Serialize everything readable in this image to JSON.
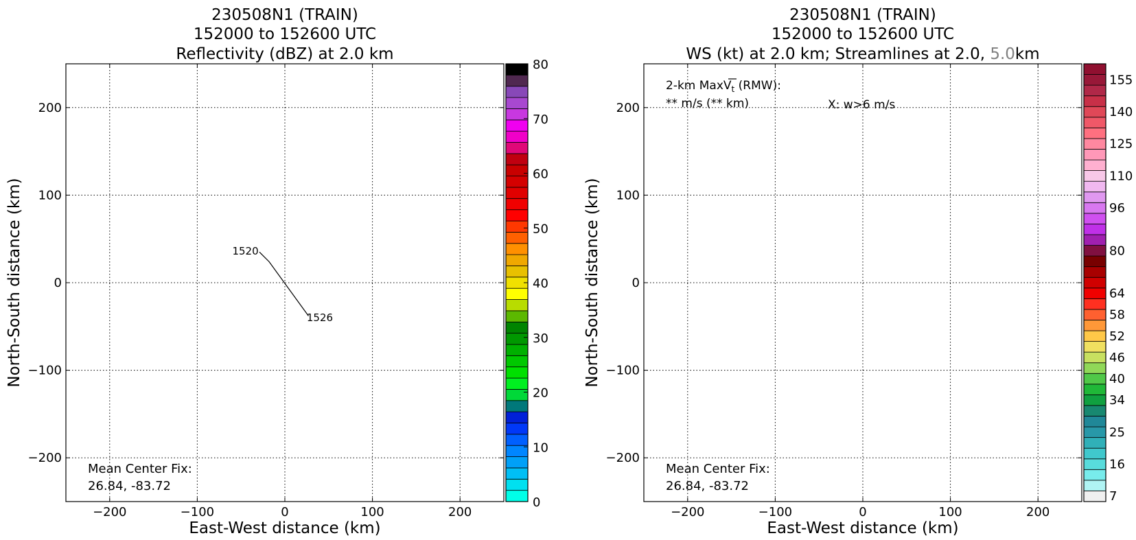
{
  "chart_data": [
    {
      "type": "line",
      "title_lines": [
        "230508N1 (TRAIN)",
        "152000 to 152600 UTC",
        "Reflectivity (dBZ) at 2.0 km"
      ],
      "xlabel": "East-West distance (km)",
      "ylabel": "North-South distance (km)",
      "xlim": [
        -250,
        250
      ],
      "ylim": [
        -250,
        250
      ],
      "xticks": [
        -200,
        -100,
        0,
        100,
        200
      ],
      "yticks": [
        -200,
        -100,
        0,
        100,
        200
      ],
      "xtick_labels": [
        "−200",
        "−100",
        "0",
        "100",
        "200"
      ],
      "ytick_labels": [
        "−200",
        "−100",
        "0",
        "100",
        "200"
      ],
      "grid": true,
      "series": [
        {
          "x": [
            -29,
            -18,
            27
          ],
          "y": [
            35,
            24,
            -38
          ]
        }
      ],
      "annotations": [
        {
          "text": "1520",
          "x": -60,
          "y": 36
        },
        {
          "text": "1526",
          "x": 25,
          "y": -40
        }
      ],
      "center_fix": {
        "line1": "Mean Center Fix:",
        "line2": "26.84, -83.72"
      },
      "colorbar": {
        "min": 0,
        "max": 80,
        "tick_values": [
          0,
          10,
          20,
          30,
          40,
          50,
          60,
          70,
          80
        ],
        "tick_labels": [
          "0",
          "10",
          "20",
          "30",
          "40",
          "50",
          "60",
          "70",
          "80"
        ],
        "colors": [
          "#00ffe8",
          "#00e0f0",
          "#00bff5",
          "#00a0f8",
          "#0086ff",
          "#0060ff",
          "#0038f8",
          "#0020d8",
          "#00787a",
          "#00d838",
          "#00f020",
          "#00e000",
          "#00c800",
          "#00b000",
          "#009800",
          "#008400",
          "#5cb800",
          "#b8dc00",
          "#ffff00",
          "#f0e000",
          "#e8c000",
          "#f0a800",
          "#ff9000",
          "#ff6000",
          "#ff3800",
          "#ff0000",
          "#f00000",
          "#e00000",
          "#d40000",
          "#c80000",
          "#c00010",
          "#e00878",
          "#f000c8",
          "#f000f0",
          "#c838e0",
          "#a848d0",
          "#8848b8",
          "#502850",
          "#000000"
        ]
      }
    },
    {
      "type": "line",
      "title_lines": [
        "230508N1 (TRAIN)",
        "152000 to 152600 UTC"
      ],
      "title_line3_parts": {
        "main": "WS (kt) at 2.0 km; Streamlines at 2.0, ",
        "gray": "5.0",
        "end": "km"
      },
      "xlabel": "East-West distance (km)",
      "ylabel": "North-South distance (km)",
      "xlim": [
        -250,
        250
      ],
      "ylim": [
        -250,
        250
      ],
      "xticks": [
        -200,
        -100,
        0,
        100,
        200
      ],
      "yticks": [
        -200,
        -100,
        0,
        100,
        200
      ],
      "xtick_labels": [
        "−200",
        "−100",
        "0",
        "100",
        "200"
      ],
      "ytick_labels": [
        "−200",
        "−100",
        "0",
        "100",
        "200"
      ],
      "grid": true,
      "series": [],
      "max_vt": {
        "prefix": "2-km MaxV",
        "sub": "t",
        "suffix": " (RMW):",
        "value": "** m/s (** km)"
      },
      "w_note": "X: w>6 m/s",
      "center_fix": {
        "line1": "Mean Center Fix:",
        "line2": "26.84, -83.72"
      },
      "colorbar": {
        "tick_labels": [
          "7",
          "16",
          "25",
          "34",
          "40",
          "46",
          "52",
          "58",
          "64",
          "80",
          "96",
          "110",
          "125",
          "140",
          "155"
        ],
        "tick_segments": [
          0,
          3,
          6,
          9,
          11,
          13,
          15,
          17,
          19,
          23,
          27,
          30,
          33,
          36,
          39
        ],
        "colors": [
          "#f0f0f0",
          "#b0f4f4",
          "#78ecec",
          "#58dcdc",
          "#40c8cc",
          "#30b0b8",
          "#2898a8",
          "#208898",
          "#188870",
          "#10a040",
          "#20b838",
          "#50c848",
          "#90d858",
          "#c8e060",
          "#f0e060",
          "#ffc848",
          "#ff9838",
          "#ff6030",
          "#ff3020",
          "#f00000",
          "#d00000",
          "#a80000",
          "#780000",
          "#801040",
          "#a020b0",
          "#c030e8",
          "#d050f0",
          "#d878f0",
          "#e098f0",
          "#f0b8f0",
          "#f8c8e8",
          "#ffb0d0",
          "#ff98b8",
          "#ff88a0",
          "#ff7080",
          "#f05868",
          "#e04858",
          "#c83048",
          "#b02848",
          "#981838",
          "#901030"
        ]
      }
    }
  ]
}
